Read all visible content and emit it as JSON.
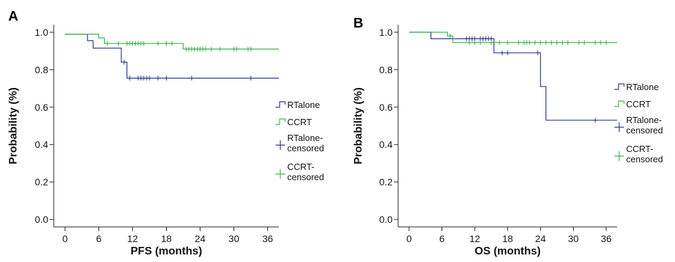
{
  "chart_data": [
    {
      "type": "line",
      "panel_label": "A",
      "xlabel": "PFS (months)",
      "ylabel": "Probability (%)",
      "xlim": [
        -2,
        38
      ],
      "ylim": [
        -0.04,
        1.04
      ],
      "xticks": [
        "0",
        "6",
        "12",
        "18",
        "24",
        "30",
        "36"
      ],
      "yticks": [
        "0.0",
        "0.2",
        "0.4",
        "0.6",
        "0.8",
        "1.0"
      ],
      "colors": {
        "RTalone": "#2b3990",
        "CCRT": "#39b54a"
      },
      "legend_position": "right",
      "legend": [
        "RTalone",
        "CCRT",
        "RTalone-\ncensored",
        "CCRT-\ncensored"
      ],
      "series": [
        {
          "name": "RTalone",
          "steps": [
            [
              0,
              0.99
            ],
            [
              4,
              0.99
            ],
            [
              4,
              0.955
            ],
            [
              5,
              0.955
            ],
            [
              5,
              0.915
            ],
            [
              10,
              0.915
            ],
            [
              10,
              0.84
            ],
            [
              11,
              0.84
            ],
            [
              11,
              0.755
            ],
            [
              38,
              0.755
            ]
          ],
          "censored_x": [
            10.5,
            11.5,
            13,
            13.5,
            14,
            14.5,
            15,
            16.5,
            18,
            22.5,
            33
          ]
        },
        {
          "name": "CCRT",
          "steps": [
            [
              0,
              0.99
            ],
            [
              6,
              0.99
            ],
            [
              6,
              0.97
            ],
            [
              7,
              0.97
            ],
            [
              7,
              0.94
            ],
            [
              21,
              0.94
            ],
            [
              21,
              0.91
            ],
            [
              38,
              0.91
            ]
          ],
          "censored_x": [
            7.5,
            9.5,
            11,
            11.5,
            12,
            12.5,
            13,
            13.5,
            14,
            16.5,
            18,
            19,
            21.5,
            22,
            22.5,
            23,
            23.5,
            24,
            24.5,
            25,
            26,
            27.5,
            30,
            30.5,
            32.5,
            33
          ]
        }
      ]
    },
    {
      "type": "line",
      "panel_label": "B",
      "xlabel": "OS (months)",
      "ylabel": "Probability (%)",
      "xlim": [
        -2,
        38
      ],
      "ylim": [
        -0.04,
        1.04
      ],
      "xticks": [
        "0",
        "6",
        "12",
        "18",
        "24",
        "30",
        "36"
      ],
      "yticks": [
        "0.0",
        "0.2",
        "0.4",
        "0.6",
        "0.8",
        "1.0"
      ],
      "colors": {
        "RTalone": "#2b3990",
        "CCRT": "#39b54a"
      },
      "legend_position": "right",
      "legend": [
        "RTalone",
        "CCRT",
        "RTalone-\ncensored",
        "CCRT-\ncensored"
      ],
      "series": [
        {
          "name": "RTalone",
          "steps": [
            [
              0,
              1.0
            ],
            [
              4,
              1.0
            ],
            [
              4,
              0.965
            ],
            [
              15.5,
              0.965
            ],
            [
              15.5,
              0.89
            ],
            [
              24,
              0.89
            ],
            [
              24,
              0.71
            ],
            [
              25,
              0.71
            ],
            [
              25,
              0.53
            ],
            [
              38,
              0.53
            ]
          ],
          "censored_x": [
            10.5,
            11,
            11.5,
            12,
            13,
            13.5,
            14,
            14.5,
            15,
            17,
            18,
            23.5,
            34
          ]
        },
        {
          "name": "CCRT",
          "steps": [
            [
              0,
              1.0
            ],
            [
              7,
              1.0
            ],
            [
              7,
              0.98
            ],
            [
              8,
              0.98
            ],
            [
              8,
              0.945
            ],
            [
              38,
              0.945
            ]
          ],
          "censored_x": [
            7.5,
            11,
            12,
            13,
            15,
            16.5,
            18,
            20,
            21,
            21.5,
            22,
            23,
            24,
            25,
            26,
            27,
            28,
            29,
            31,
            32,
            34,
            35,
            36
          ]
        }
      ]
    }
  ]
}
